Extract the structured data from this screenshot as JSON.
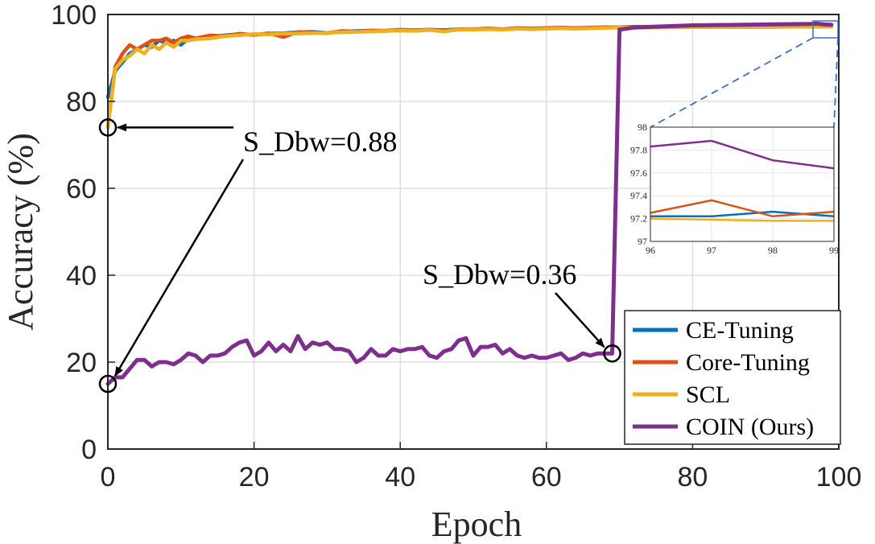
{
  "chart_data": [
    {
      "type": "line",
      "xlabel": "Epoch",
      "ylabel": "Accuracy (%)",
      "xlim": [
        0,
        100
      ],
      "ylim": [
        0,
        100
      ],
      "xticks": [
        "0",
        "20",
        "40",
        "60",
        "80",
        "100"
      ],
      "yticks": [
        "0",
        "20",
        "40",
        "60",
        "80",
        "100"
      ],
      "grid": true,
      "legend_position": "bottom-right",
      "series": [
        {
          "name": "CE-Tuning",
          "color": "#0072BD",
          "x": [
            0,
            1,
            2,
            3,
            4,
            5,
            6,
            7,
            8,
            9,
            10,
            11,
            12,
            14,
            16,
            18,
            20,
            22,
            24,
            26,
            28,
            30,
            32,
            34,
            36,
            38,
            40,
            42,
            44,
            46,
            48,
            50,
            52,
            54,
            56,
            58,
            60,
            62,
            64,
            66,
            68,
            70,
            72,
            75,
            80,
            85,
            90,
            96,
            97,
            98,
            99
          ],
          "y": [
            81,
            87,
            89,
            91,
            92,
            93,
            92.5,
            94,
            93.5,
            94,
            93,
            94.5,
            94.5,
            94.8,
            95.2,
            95.5,
            95.3,
            95.6,
            95.7,
            95.9,
            96,
            95.8,
            96.1,
            96.2,
            96.3,
            96.2,
            96.4,
            96.3,
            96.5,
            96.4,
            96.6,
            96.5,
            96.7,
            96.6,
            96.8,
            96.7,
            96.8,
            96.9,
            96.8,
            96.9,
            97,
            97,
            97.1,
            97.1,
            97.1,
            97.2,
            97.2,
            97.22,
            97.22,
            97.26,
            97.22
          ]
        },
        {
          "name": "Core-Tuning",
          "color": "#D95319",
          "x": [
            0,
            1,
            2,
            3,
            4,
            5,
            6,
            7,
            8,
            9,
            10,
            11,
            12,
            14,
            16,
            18,
            20,
            22,
            24,
            26,
            28,
            30,
            32,
            34,
            36,
            38,
            40,
            42,
            44,
            46,
            48,
            50,
            52,
            54,
            56,
            58,
            60,
            62,
            64,
            66,
            68,
            70,
            72,
            75,
            80,
            85,
            90,
            96,
            97,
            98,
            99
          ],
          "y": [
            74,
            88,
            91,
            93,
            92,
            93,
            94,
            94,
            94.5,
            93.5,
            94.5,
            95,
            94.5,
            95.2,
            95,
            95.6,
            95.3,
            95.7,
            94.8,
            96,
            95.8,
            95.7,
            96.2,
            96.1,
            96.3,
            96.3,
            96.5,
            96.4,
            96.5,
            96.3,
            96.6,
            96.6,
            96.8,
            96.6,
            96.9,
            96.8,
            96.9,
            97,
            96.9,
            97,
            97.1,
            97.1,
            97.2,
            97.2,
            97.2,
            97.2,
            97.3,
            97.25,
            97.36,
            97.22,
            97.26
          ]
        },
        {
          "name": "SCL",
          "color": "#EDB120",
          "x": [
            0,
            1,
            2,
            3,
            4,
            5,
            6,
            7,
            8,
            9,
            10,
            11,
            12,
            14,
            16,
            18,
            20,
            22,
            24,
            26,
            28,
            30,
            32,
            34,
            36,
            38,
            40,
            42,
            44,
            46,
            48,
            50,
            52,
            54,
            56,
            58,
            60,
            62,
            64,
            66,
            68,
            70,
            72,
            75,
            80,
            85,
            90,
            96,
            97,
            98,
            99
          ],
          "y": [
            74,
            87.5,
            89.5,
            90.5,
            92,
            91,
            93,
            92,
            93.5,
            92.5,
            94,
            94,
            94.3,
            94.5,
            95,
            95.2,
            95.5,
            95.4,
            95.6,
            95.6,
            95.7,
            95.8,
            95.9,
            96,
            96.1,
            96.2,
            96.3,
            96.2,
            96.4,
            96.1,
            96.5,
            96.5,
            96.6,
            96.5,
            96.7,
            96.6,
            96.7,
            96.8,
            96.7,
            96.8,
            96.9,
            97,
            97,
            97,
            97.1,
            97.1,
            97.1,
            97.2,
            97.19,
            97.18,
            97.18
          ]
        },
        {
          "name": "COIN (Ours)",
          "color": "#7E2F8E",
          "x": [
            0,
            1,
            2,
            3,
            4,
            5,
            6,
            7,
            8,
            9,
            10,
            11,
            12,
            13,
            14,
            15,
            16,
            17,
            18,
            19,
            20,
            21,
            22,
            23,
            24,
            25,
            26,
            27,
            28,
            29,
            30,
            31,
            32,
            33,
            34,
            35,
            36,
            37,
            38,
            39,
            40,
            41,
            42,
            43,
            44,
            45,
            46,
            47,
            48,
            49,
            50,
            51,
            52,
            53,
            54,
            55,
            56,
            57,
            58,
            59,
            60,
            61,
            62,
            63,
            64,
            65,
            66,
            67,
            68,
            69,
            70,
            72,
            75,
            80,
            85,
            90,
            96,
            97,
            98,
            99
          ],
          "y": [
            15,
            16.5,
            16.5,
            18.5,
            20.5,
            20.5,
            19,
            20,
            20,
            19.5,
            20.5,
            22,
            21.5,
            20,
            21.5,
            21.5,
            22,
            23.5,
            24.5,
            25,
            21.5,
            22.5,
            24.5,
            22.5,
            24,
            22.5,
            26,
            23,
            24.5,
            24,
            24.5,
            23,
            23,
            22.5,
            20,
            21,
            23,
            21.5,
            21.5,
            23,
            22.5,
            23,
            23,
            23.5,
            21.5,
            21,
            22.5,
            23,
            25,
            25.5,
            21.5,
            23.5,
            23.5,
            24,
            22,
            23,
            21.5,
            21,
            21.5,
            21,
            21,
            21.5,
            22,
            20.5,
            21,
            22,
            21.5,
            22,
            22,
            22,
            96.5,
            97,
            97.2,
            97.5,
            97.6,
            97.7,
            97.83,
            97.88,
            97.71,
            97.64
          ]
        }
      ],
      "annotations": [
        {
          "text": "S_Dbw=0.88",
          "points": [
            [
              0,
              74
            ],
            [
              0,
              15
            ]
          ]
        },
        {
          "text": "S_Dbw=0.36",
          "points": [
            [
              69,
              22
            ]
          ]
        }
      ]
    },
    {
      "type": "line",
      "role": "inset-zoom",
      "xlim": [
        96,
        99
      ],
      "ylim": [
        97,
        98
      ],
      "xticks": [
        "96",
        "97",
        "98",
        "99"
      ],
      "yticks": [
        "97",
        "97.2",
        "97.4",
        "97.6",
        "97.8",
        "98"
      ],
      "grid": true,
      "series": [
        {
          "name": "CE-Tuning",
          "color": "#0072BD",
          "x": [
            96,
            97,
            98,
            99
          ],
          "y": [
            97.22,
            97.22,
            97.26,
            97.22
          ]
        },
        {
          "name": "Core-Tuning",
          "color": "#D95319",
          "x": [
            96,
            97,
            98,
            99
          ],
          "y": [
            97.25,
            97.36,
            97.22,
            97.26
          ]
        },
        {
          "name": "SCL",
          "color": "#EDB120",
          "x": [
            96,
            97,
            98,
            99
          ],
          "y": [
            97.2,
            97.19,
            97.18,
            97.18
          ]
        },
        {
          "name": "COIN (Ours)",
          "color": "#7E2F8E",
          "x": [
            96,
            97,
            98,
            99
          ],
          "y": [
            97.83,
            97.88,
            97.71,
            97.64
          ]
        }
      ]
    }
  ]
}
